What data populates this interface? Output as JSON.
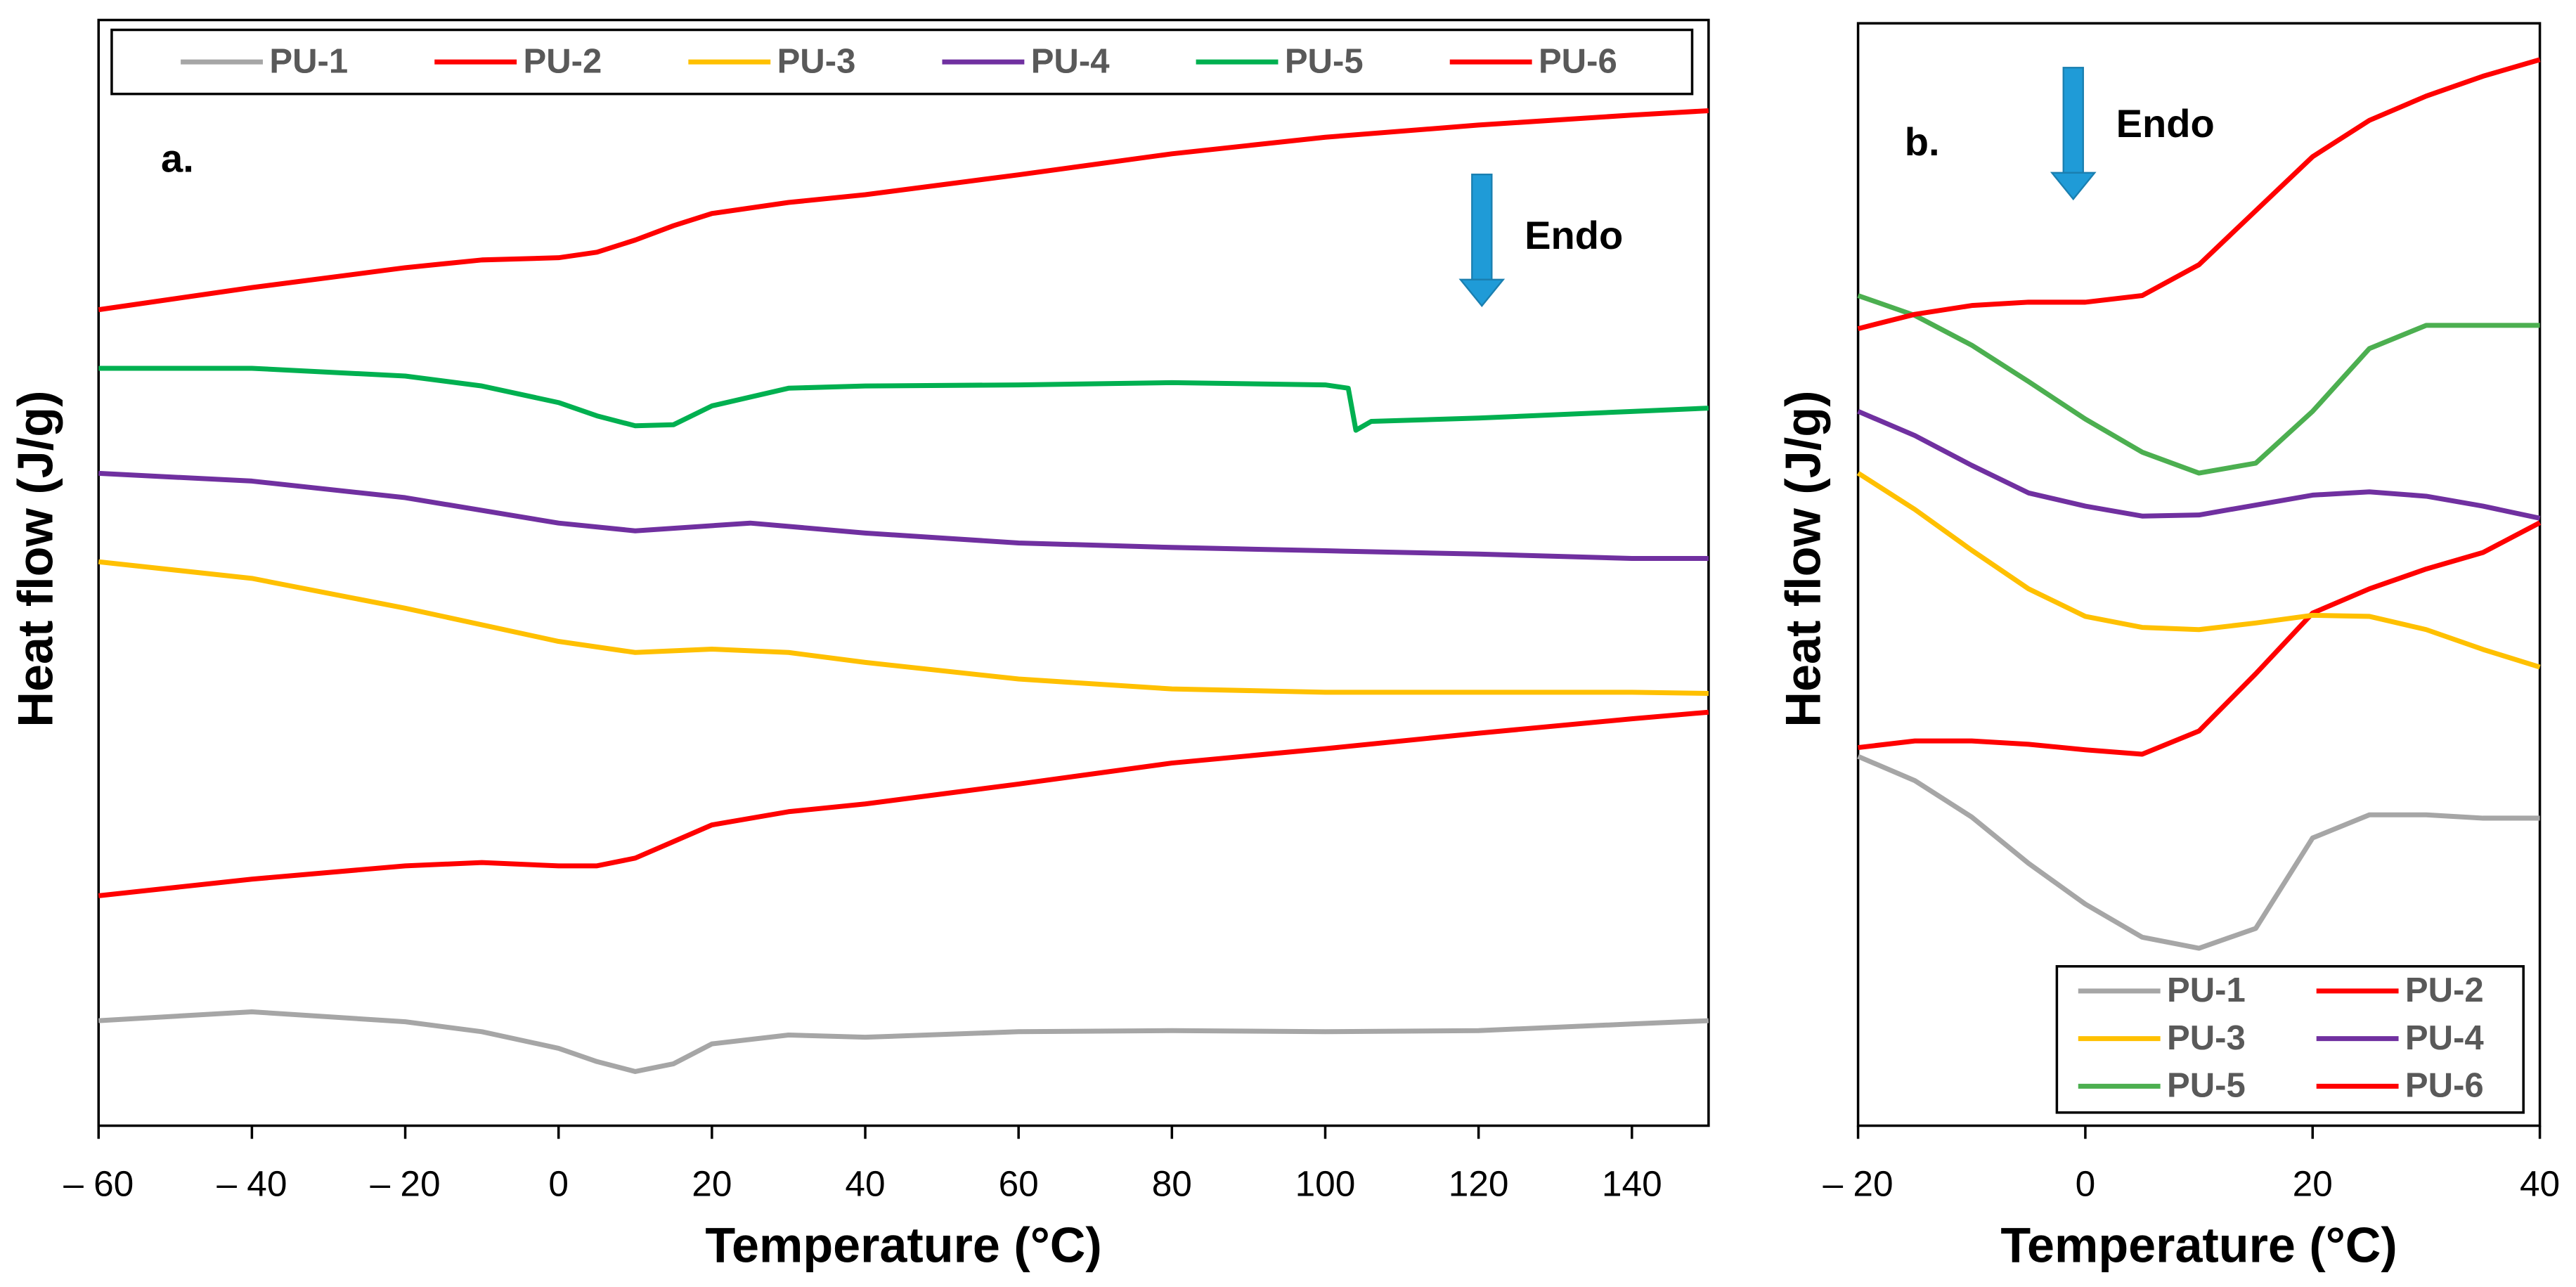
{
  "chart_data": [
    {
      "type": "line",
      "panel_label": "a.",
      "annotation": "Endo",
      "xlabel": "Temperature (°C)",
      "ylabel": "Heat flow (J/g)",
      "xlim": [
        -60,
        150
      ],
      "ylim": [
        0,
        100
      ],
      "xticks": [
        {
          "value": -60,
          "label": "– 60"
        },
        {
          "value": -40,
          "label": "– 40"
        },
        {
          "value": -20,
          "label": "– 20"
        },
        0,
        20,
        40,
        60,
        80,
        100,
        120,
        140
      ],
      "legend": "top",
      "series": [
        {
          "name": "PU-1",
          "color": "#a6a6a6",
          "x": [
            -60,
            -40,
            -20,
            -10,
            0,
            5,
            10,
            15,
            20,
            30,
            40,
            60,
            80,
            100,
            120,
            140,
            150
          ],
          "values": [
            9.5,
            10.3,
            9.4,
            8.5,
            7.0,
            5.8,
            4.9,
            5.6,
            7.4,
            8.2,
            8.0,
            8.5,
            8.6,
            8.5,
            8.6,
            9.2,
            9.5
          ]
        },
        {
          "name": "PU-2",
          "color": "#ff0000",
          "x": [
            -60,
            -40,
            -20,
            -10,
            0,
            5,
            10,
            15,
            20,
            30,
            40,
            60,
            80,
            100,
            120,
            140,
            150
          ],
          "values": [
            20.8,
            22.3,
            23.5,
            23.8,
            23.5,
            23.5,
            24.2,
            25.7,
            27.2,
            28.4,
            29.1,
            30.9,
            32.8,
            34.1,
            35.5,
            36.8,
            37.4
          ]
        },
        {
          "name": "PU-3",
          "color": "#ffc000",
          "x": [
            -60,
            -40,
            -20,
            0,
            10,
            20,
            30,
            40,
            60,
            80,
            100,
            120,
            140,
            150
          ],
          "values": [
            51.0,
            49.5,
            46.8,
            43.8,
            42.8,
            43.1,
            42.8,
            41.9,
            40.4,
            39.5,
            39.2,
            39.2,
            39.2,
            39.1
          ]
        },
        {
          "name": "PU-4",
          "color": "#7030a0",
          "x": [
            -60,
            -40,
            -20,
            0,
            10,
            25,
            40,
            60,
            80,
            100,
            120,
            140,
            150
          ],
          "values": [
            59.0,
            58.3,
            56.8,
            54.5,
            53.8,
            54.5,
            53.6,
            52.7,
            52.3,
            52.0,
            51.7,
            51.3,
            51.3
          ]
        },
        {
          "name": "PU-5",
          "color": "#00b050",
          "x": [
            -60,
            -40,
            -20,
            -10,
            0,
            5,
            10,
            15,
            20,
            30,
            40,
            60,
            80,
            100,
            103,
            104,
            106,
            120,
            140,
            150
          ],
          "values": [
            68.5,
            68.5,
            67.8,
            66.9,
            65.4,
            64.2,
            63.3,
            63.4,
            65.1,
            66.7,
            66.9,
            67.0,
            67.2,
            67.0,
            66.7,
            62.9,
            63.7,
            64.0,
            64.6,
            64.9
          ]
        },
        {
          "name": "PU-6",
          "color": "#ff0000",
          "x": [
            -60,
            -40,
            -20,
            -10,
            0,
            5,
            10,
            15,
            20,
            30,
            40,
            60,
            80,
            100,
            120,
            140,
            150
          ],
          "values": [
            73.8,
            75.8,
            77.6,
            78.3,
            78.5,
            79.0,
            80.1,
            81.4,
            82.5,
            83.5,
            84.2,
            86.0,
            87.9,
            89.4,
            90.5,
            91.4,
            91.8
          ]
        }
      ]
    },
    {
      "type": "line",
      "panel_label": "b.",
      "annotation": "Endo",
      "xlabel": "Temperature (°C)",
      "ylabel": "Heat flow (J/g)",
      "xlim": [
        -20,
        40
      ],
      "ylim": [
        0,
        100
      ],
      "xticks": [
        {
          "value": -20,
          "label": "– 20"
        },
        0,
        20,
        40
      ],
      "legend": "lower right",
      "series": [
        {
          "name": "PU-1",
          "color": "#a6a6a6",
          "x": [
            -20,
            -15,
            -10,
            -5,
            0,
            5,
            10,
            15,
            20,
            25,
            30,
            35,
            40
          ],
          "values": [
            33.5,
            31.3,
            28.0,
            23.8,
            20.1,
            17.1,
            16.1,
            17.9,
            26.1,
            28.2,
            28.2,
            27.9,
            27.9
          ]
        },
        {
          "name": "PU-2",
          "color": "#ff0000",
          "x": [
            -20,
            -15,
            -10,
            -5,
            0,
            5,
            10,
            15,
            20,
            25,
            30,
            35,
            40
          ],
          "values": [
            34.3,
            34.9,
            34.9,
            34.6,
            34.1,
            33.7,
            35.8,
            41.0,
            46.5,
            48.7,
            50.5,
            52.0,
            54.7
          ]
        },
        {
          "name": "PU-3",
          "color": "#ffc000",
          "x": [
            -20,
            -15,
            -10,
            -5,
            0,
            5,
            10,
            15,
            20,
            25,
            30,
            35,
            40
          ],
          "values": [
            59.2,
            55.9,
            52.2,
            48.7,
            46.2,
            45.2,
            45.0,
            45.6,
            46.3,
            46.2,
            45.0,
            43.2,
            41.6
          ]
        },
        {
          "name": "PU-4",
          "color": "#7030a0",
          "x": [
            -20,
            -15,
            -10,
            -5,
            0,
            5,
            10,
            15,
            20,
            25,
            30,
            35,
            40
          ],
          "values": [
            64.8,
            62.6,
            59.9,
            57.4,
            56.2,
            55.3,
            55.4,
            56.3,
            57.2,
            57.5,
            57.1,
            56.2,
            55.1
          ]
        },
        {
          "name": "PU-5",
          "color": "#4caf50",
          "x": [
            -20,
            -15,
            -10,
            -5,
            0,
            5,
            10,
            15,
            20,
            25,
            30,
            35,
            40
          ],
          "values": [
            75.3,
            73.5,
            70.8,
            67.5,
            64.1,
            61.1,
            59.2,
            60.1,
            64.8,
            70.5,
            72.6,
            72.6,
            72.6
          ]
        },
        {
          "name": "PU-6",
          "color": "#ff0000",
          "x": [
            -20,
            -15,
            -10,
            -5,
            0,
            5,
            10,
            15,
            20,
            25,
            30,
            35,
            40
          ],
          "values": [
            72.3,
            73.6,
            74.4,
            74.7,
            74.7,
            75.3,
            78.1,
            83.0,
            87.9,
            91.2,
            93.4,
            95.2,
            96.7
          ]
        }
      ]
    }
  ]
}
